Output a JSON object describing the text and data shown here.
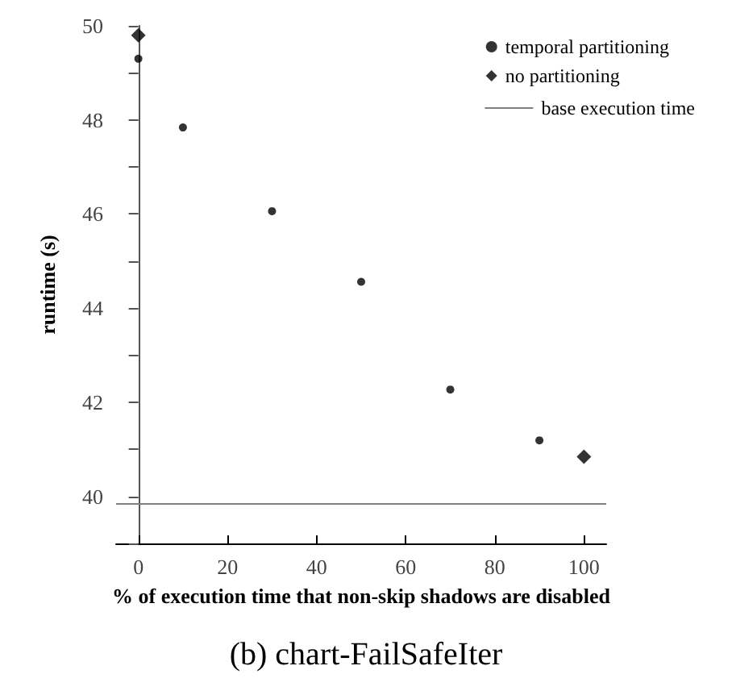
{
  "chart_data": {
    "type": "scatter",
    "title": "(b) chart-FailSafeIter",
    "xlabel": "% of execution time that non-skip shadows are disabled",
    "ylabel": "runtime (s)",
    "series": [
      {
        "name": "temporal partitioning",
        "color": "#000000",
        "marker": "circle",
        "x": [
          0,
          10,
          30,
          50,
          70,
          90
        ],
        "values": [
          49.3,
          47.84,
          46.06,
          44.56,
          42.27,
          41.19
        ]
      },
      {
        "name": "no partitioning",
        "color": "#000000",
        "marker": "diamond",
        "x": [
          0,
          100
        ],
        "values": [
          49.8,
          40.84
        ]
      }
    ],
    "ref_lines": [
      {
        "axis": "y",
        "value": 39.85,
        "label": "base execution time",
        "color": "#808080",
        "line_style": "solid"
      }
    ],
    "xlim": [
      -5,
      105
    ],
    "xticks": [
      0,
      20,
      40,
      60,
      80,
      100
    ],
    "ylim": [
      39,
      50
    ],
    "yticks": [
      {
        "value": 39,
        "label": null
      },
      40,
      {
        "value": 41,
        "label": null
      },
      42,
      {
        "value": 43,
        "label": null
      },
      44,
      {
        "value": 45,
        "label": null
      },
      46,
      {
        "value": 47,
        "label": null
      },
      48,
      {
        "value": 49,
        "label": null
      },
      50
    ],
    "grid": false,
    "legend": "top right"
  }
}
